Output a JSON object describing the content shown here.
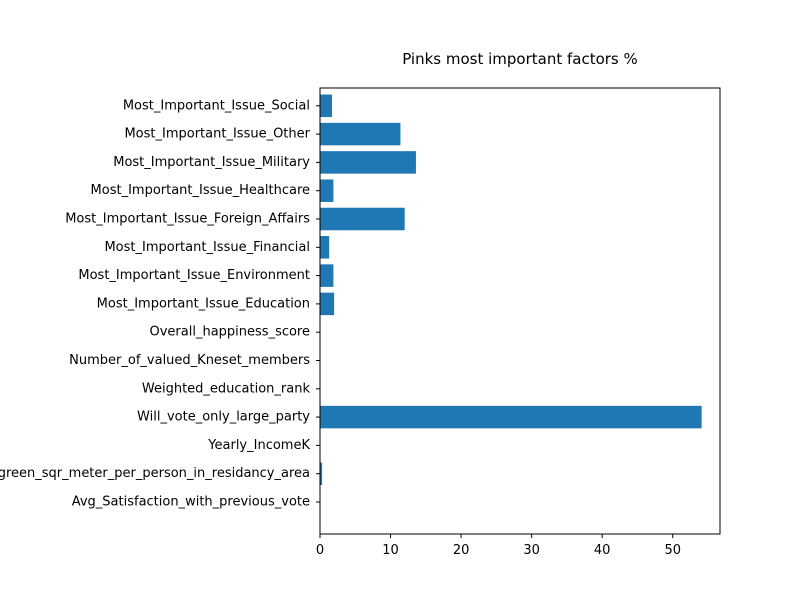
{
  "chart_data": {
    "type": "bar",
    "orientation": "horizontal",
    "title": "Pinks most important factors %",
    "xlabel": "",
    "ylabel": "",
    "xlim": [
      0,
      56.7
    ],
    "xticks": [
      0,
      10,
      20,
      30,
      40,
      50
    ],
    "grid": false,
    "bar_color": "#1f77b4",
    "categories": [
      "Avg_Satisfaction_with_previous_vote",
      "Avg_green_sqr_meter_per_person_in_residancy_area",
      "Yearly_IncomeK",
      "Will_vote_only_large_party",
      "Weighted_education_rank",
      "Number_of_valued_Kneset_members",
      "Overall_happiness_score",
      "Most_Important_Issue_Education",
      "Most_Important_Issue_Environment",
      "Most_Important_Issue_Financial",
      "Most_Important_Issue_Foreign_Affairs",
      "Most_Important_Issue_Healthcare",
      "Most_Important_Issue_Military",
      "Most_Important_Issue_Other",
      "Most_Important_Issue_Social"
    ],
    "values": [
      0.0,
      0.3,
      0.0,
      54.1,
      0.0,
      0.0,
      0.0,
      2.0,
      1.9,
      1.3,
      12.0,
      1.9,
      13.6,
      11.4,
      1.7
    ]
  }
}
